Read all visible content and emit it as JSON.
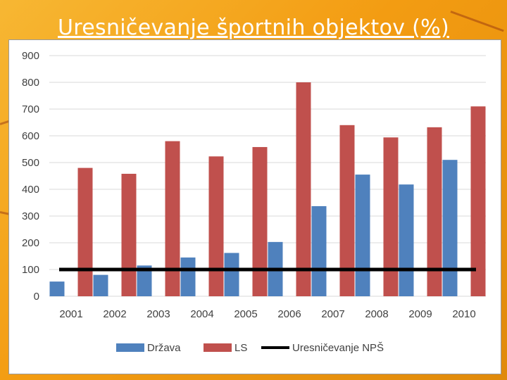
{
  "slide": {
    "title": "Uresničevanje športnih objektov (%)"
  },
  "colors": {
    "drzava": "#4f81bd",
    "ls": "#c0504d",
    "nps": "#000000",
    "grid": "#d9d9d9"
  },
  "chart_data": {
    "type": "bar",
    "title": "",
    "xlabel": "",
    "ylabel": "",
    "ylim": [
      0,
      900
    ],
    "yticks": [
      0,
      100,
      200,
      300,
      400,
      500,
      600,
      700,
      800,
      900
    ],
    "categories": [
      "2001",
      "2002",
      "2003",
      "2004",
      "2005",
      "2006",
      "2007",
      "2008",
      "2009",
      "2010"
    ],
    "series": [
      {
        "name": "Država",
        "type": "bar",
        "color": "#4f81bd",
        "values": [
          55,
          80,
          115,
          145,
          162,
          203,
          337,
          455,
          418,
          510
        ]
      },
      {
        "name": "LS",
        "type": "bar",
        "color": "#c0504d",
        "values": [
          480,
          458,
          580,
          523,
          558,
          800,
          640,
          594,
          632,
          710
        ]
      },
      {
        "name": "Uresničevanje NPŠ",
        "type": "line",
        "color": "#000000",
        "values": [
          100,
          100,
          100,
          100,
          100,
          100,
          100,
          100,
          100,
          100
        ]
      }
    ],
    "grid": true,
    "legend": "bottom"
  }
}
